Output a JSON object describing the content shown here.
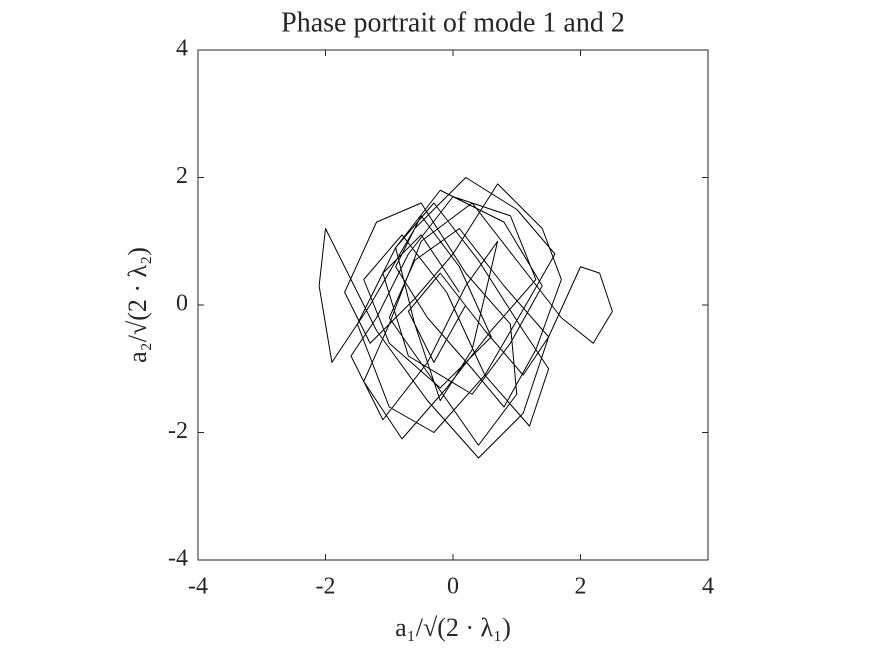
{
  "chart_data": {
    "type": "line",
    "title": "Phase portrait of mode 1 and 2",
    "xlabel": "a₁/√(2 · λ₁)",
    "ylabel": "a₂/√(2 · λ₂)",
    "color": "#000000",
    "grid": false,
    "xlim": [
      -4,
      4
    ],
    "ylim": [
      -4,
      4
    ],
    "xticks": [
      -4,
      -2,
      0,
      2,
      4
    ],
    "yticks": [
      -4,
      -2,
      0,
      2,
      4
    ],
    "x": [
      0.1,
      -0.5,
      -1.1,
      -0.7,
      0.3,
      0.9,
      1.4,
      0.8,
      -0.2,
      -0.9,
      -1.5,
      -1.0,
      -0.3,
      0.5,
      1.2,
      1.6,
      1.0,
      0.2,
      -0.6,
      -1.3,
      -1.9,
      -2.1,
      -2.0,
      -1.7,
      -1.2,
      -0.4,
      0.4,
      1.1,
      1.5,
      2.0,
      2.3,
      2.5,
      2.2,
      1.7,
      1.0,
      0.3,
      -0.5,
      -1.0,
      -1.4,
      -0.8,
      -0.1,
      0.6,
      1.3,
      0.9,
      0.0,
      -0.7,
      -1.2,
      -1.6,
      -1.1,
      -0.4,
      0.2,
      0.7,
      0.3,
      -0.2,
      -0.6,
      -0.9,
      -0.3,
      0.4,
      1.1,
      1.5,
      1.2,
      0.5,
      -0.1,
      -0.8,
      -1.4,
      -1.0,
      -0.2,
      0.6,
      0.1,
      -0.5,
      -0.9,
      -0.4,
      0.3,
      0.8,
      1.3,
      1.7,
      1.4,
      0.7,
      0.0,
      -0.6,
      -1.3,
      -1.7,
      -1.2,
      -0.5,
      0.2,
      0.9,
      1.0,
      0.4,
      -0.3,
      -1.0,
      -0.6,
      0.1,
      0.8,
      1.5,
      1.1,
      0.5,
      -0.2,
      -0.7,
      -0.3,
      0.2
    ],
    "values": [
      0.2,
      1.1,
      0.5,
      -0.8,
      -1.4,
      -0.6,
      0.3,
      1.3,
      1.8,
      0.9,
      -0.3,
      -1.6,
      -2.0,
      -1.1,
      0.1,
      0.8,
      1.5,
      2.0,
      1.2,
      0.0,
      -0.9,
      0.3,
      1.2,
      0.6,
      -0.4,
      -1.5,
      -2.4,
      -1.7,
      -0.5,
      0.6,
      0.5,
      -0.1,
      -0.6,
      -0.2,
      0.7,
      1.6,
      1.0,
      -0.3,
      -1.2,
      -2.1,
      -1.3,
      -0.4,
      0.4,
      1.4,
      1.7,
      0.8,
      -0.2,
      -0.8,
      -1.8,
      -0.9,
      0.3,
      1.0,
      -0.7,
      -1.5,
      -0.3,
      0.9,
      1.6,
      0.7,
      -0.4,
      -1.0,
      -1.9,
      -1.1,
      0.2,
      1.1,
      0.4,
      -0.6,
      -1.3,
      -0.5,
      0.6,
      1.4,
      0.6,
      -0.2,
      -1.0,
      -1.6,
      -0.7,
      0.4,
      1.2,
      1.9,
      0.8,
      0.1,
      -0.6,
      0.2,
      1.3,
      1.6,
      0.5,
      -0.3,
      -1.4,
      -2.2,
      -1.2,
      -0.2,
      0.7,
      1.2,
      0.3,
      -0.5,
      -1.1,
      -0.4,
      0.5,
      -0.1,
      -0.9,
      0.0
    ]
  }
}
